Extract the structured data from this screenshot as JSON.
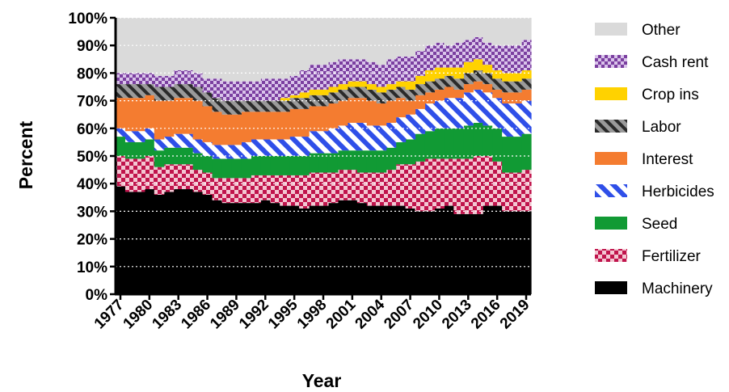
{
  "chart_data": {
    "type": "bar",
    "stacked": true,
    "xlabel": "Year",
    "ylabel": "Percent",
    "ylim": [
      0,
      100
    ],
    "yticks": [
      0,
      10,
      20,
      30,
      40,
      50,
      60,
      70,
      80,
      90,
      100
    ],
    "ytick_labels": [
      "0%",
      "10%",
      "20%",
      "30%",
      "40%",
      "50%",
      "60%",
      "70%",
      "80%",
      "90%",
      "100%"
    ],
    "xtick_labels": [
      "1977",
      "1980",
      "1983",
      "1986",
      "1989",
      "1992",
      "1995",
      "1998",
      "2001",
      "2004",
      "2007",
      "2010",
      "2013",
      "2016",
      "2019"
    ],
    "categories": [
      "1977",
      "1978",
      "1979",
      "1980",
      "1981",
      "1982",
      "1983",
      "1984",
      "1985",
      "1986",
      "1987",
      "1988",
      "1989",
      "1990",
      "1991",
      "1992",
      "1993",
      "1994",
      "1995",
      "1996",
      "1997",
      "1998",
      "1999",
      "2000",
      "2001",
      "2002",
      "2003",
      "2004",
      "2005",
      "2006",
      "2007",
      "2008",
      "2009",
      "2010",
      "2011",
      "2012",
      "2013",
      "2014",
      "2015",
      "2016",
      "2017",
      "2018",
      "2019"
    ],
    "legend_position": "right",
    "grid": "horizontal-dotted",
    "series": [
      {
        "name": "Machinery",
        "color": "#000000",
        "pattern": "solid",
        "values": [
          39,
          37,
          37,
          38,
          36,
          37,
          38,
          38,
          37,
          36,
          34,
          33,
          33,
          33,
          33,
          34,
          33,
          32,
          32,
          31,
          32,
          32,
          33,
          34,
          34,
          33,
          32,
          32,
          32,
          32,
          31,
          30,
          30,
          31,
          32,
          29,
          29,
          29,
          32,
          32,
          30,
          30,
          30
        ]
      },
      {
        "name": "Fertilizer",
        "color": "#c0144c",
        "pattern": "checker",
        "values": [
          11,
          12,
          12,
          12,
          10,
          10,
          9,
          9,
          8,
          8,
          8,
          9,
          9,
          9,
          10,
          9,
          10,
          11,
          11,
          12,
          12,
          12,
          11,
          11,
          11,
          11,
          12,
          12,
          13,
          15,
          16,
          18,
          19,
          18,
          17,
          20,
          20,
          21,
          18,
          16,
          14,
          14,
          15
        ]
      },
      {
        "name": "Seed",
        "color": "#119a34",
        "pattern": "solid",
        "values": [
          7,
          6,
          6,
          6,
          6,
          6,
          6,
          6,
          6,
          6,
          7,
          7,
          7,
          7,
          7,
          7,
          7,
          7,
          7,
          7,
          7,
          7,
          7,
          7,
          7,
          8,
          8,
          8,
          8,
          8,
          9,
          10,
          10,
          11,
          11,
          11,
          12,
          12,
          11,
          12,
          13,
          13,
          13
        ]
      },
      {
        "name": "Herbicides",
        "color": "#2f4fe8",
        "pattern": "stripe",
        "values": [
          3,
          4,
          4,
          4,
          4,
          4,
          5,
          5,
          5,
          5,
          5,
          5,
          5,
          6,
          6,
          6,
          6,
          6,
          7,
          7,
          8,
          8,
          9,
          9,
          10,
          10,
          9,
          9,
          9,
          9,
          9,
          9,
          10,
          10,
          11,
          11,
          12,
          12,
          12,
          11,
          12,
          12,
          12
        ]
      },
      {
        "name": "Interest",
        "color": "#f47c30",
        "pattern": "solid",
        "values": [
          11,
          12,
          12,
          12,
          14,
          13,
          13,
          13,
          14,
          13,
          12,
          11,
          11,
          11,
          10,
          10,
          10,
          10,
          10,
          10,
          9,
          9,
          9,
          9,
          9,
          9,
          9,
          8,
          8,
          7,
          5,
          5,
          4,
          4,
          4,
          3,
          3,
          3,
          3,
          3,
          4,
          4,
          4
        ]
      },
      {
        "name": "Labor",
        "color": "#4a4a4a",
        "pattern": "hatch",
        "values": [
          5,
          5,
          5,
          4,
          5,
          5,
          5,
          5,
          5,
          5,
          5,
          5,
          5,
          4,
          4,
          4,
          4,
          4,
          4,
          4,
          4,
          4,
          4,
          4,
          4,
          4,
          4,
          4,
          4,
          4,
          4,
          4,
          4,
          4,
          4,
          4,
          4,
          4,
          4,
          4,
          4,
          4,
          4
        ]
      },
      {
        "name": "Crop ins",
        "color": "#ffd200",
        "pattern": "solid",
        "values": [
          0,
          0,
          0,
          0,
          0,
          0,
          0,
          0,
          0,
          0,
          0,
          0,
          0,
          0,
          0,
          0,
          0,
          1,
          1,
          2,
          2,
          2,
          2,
          2,
          2,
          2,
          2,
          2,
          2,
          2,
          3,
          3,
          4,
          4,
          3,
          4,
          4,
          4,
          3,
          3,
          3,
          3,
          3
        ]
      },
      {
        "name": "Cash rent",
        "color": "#7b3fa0",
        "pattern": "checker",
        "values": [
          4,
          4,
          4,
          4,
          4,
          4,
          5,
          5,
          5,
          5,
          7,
          7,
          7,
          7,
          7,
          8,
          8,
          7,
          7,
          8,
          9,
          9,
          9,
          9,
          8,
          8,
          8,
          8,
          9,
          9,
          9,
          9,
          9,
          9,
          8,
          9,
          8,
          8,
          8,
          9,
          10,
          10,
          11
        ]
      },
      {
        "name": "Other",
        "color": "#dadada",
        "pattern": "solid",
        "values": [
          20,
          20,
          20,
          20,
          21,
          21,
          19,
          19,
          20,
          22,
          22,
          23,
          23,
          23,
          23,
          22,
          22,
          22,
          21,
          19,
          17,
          17,
          16,
          15,
          15,
          15,
          16,
          17,
          15,
          14,
          14,
          12,
          10,
          9,
          10,
          9,
          8,
          7,
          9,
          10,
          10,
          10,
          8
        ]
      }
    ]
  }
}
